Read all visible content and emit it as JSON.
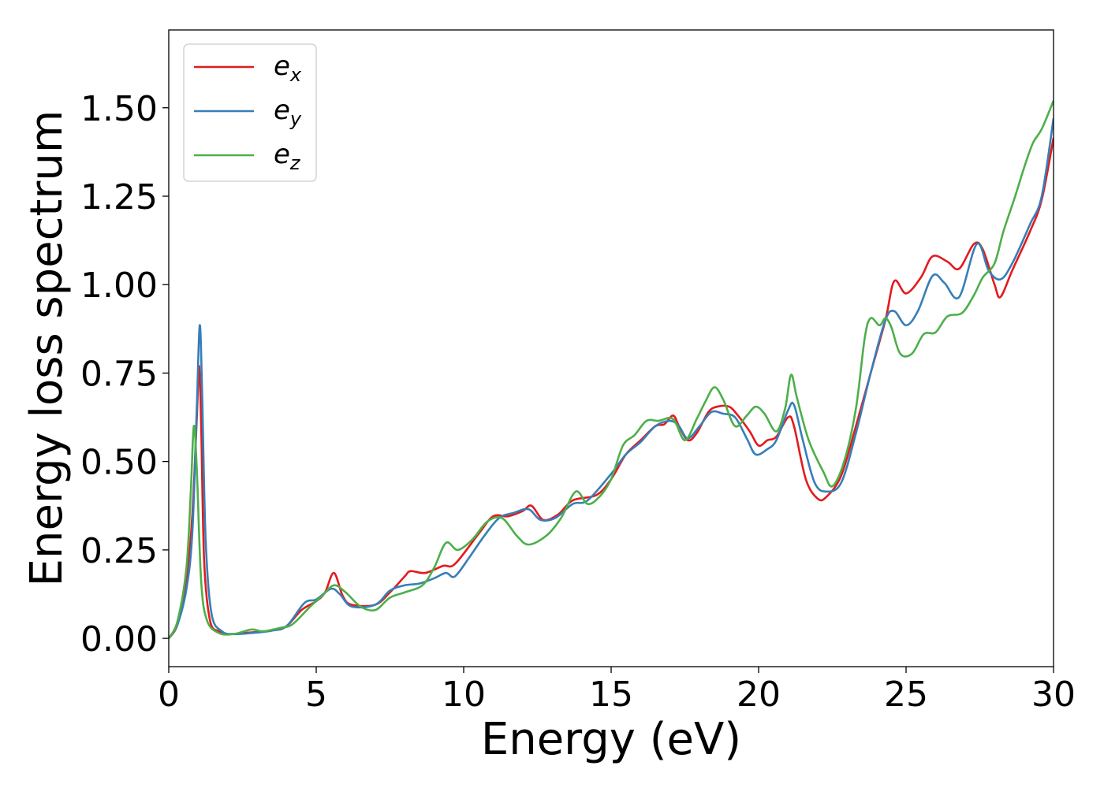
{
  "chart_data": {
    "type": "line",
    "xlabel": "Energy (eV)",
    "ylabel": "Energy loss spectrum",
    "xlim": [
      0,
      30
    ],
    "ylim": [
      -0.08,
      1.72
    ],
    "x_ticks": [
      0,
      5,
      10,
      15,
      20,
      25,
      30
    ],
    "x_tick_labels": [
      "0",
      "5",
      "10",
      "15",
      "20",
      "25",
      "30"
    ],
    "y_ticks": [
      0,
      0.25,
      0.5,
      0.75,
      1.0,
      1.25,
      1.5
    ],
    "y_tick_labels": [
      "0.00",
      "0.25",
      "0.50",
      "0.75",
      "1.00",
      "1.25",
      "1.50"
    ],
    "grid": false,
    "legend_position": "top-left",
    "series": [
      {
        "name": "e_x",
        "legend_base": "e",
        "legend_sub": "x",
        "color": "#e41a1c",
        "points": [
          [
            0,
            0
          ],
          [
            0.3,
            0.04
          ],
          [
            0.6,
            0.16
          ],
          [
            0.8,
            0.35
          ],
          [
            0.95,
            0.62
          ],
          [
            1.03,
            0.77
          ],
          [
            1.1,
            0.6
          ],
          [
            1.2,
            0.22
          ],
          [
            1.4,
            0.05
          ],
          [
            1.7,
            0.02
          ],
          [
            2.0,
            0.012
          ],
          [
            2.5,
            0.015
          ],
          [
            3.0,
            0.018
          ],
          [
            3.5,
            0.022
          ],
          [
            4.0,
            0.035
          ],
          [
            4.5,
            0.08
          ],
          [
            5.0,
            0.105
          ],
          [
            5.3,
            0.13
          ],
          [
            5.6,
            0.185
          ],
          [
            5.9,
            0.12
          ],
          [
            6.2,
            0.095
          ],
          [
            7.0,
            0.095
          ],
          [
            7.5,
            0.13
          ],
          [
            8.0,
            0.175
          ],
          [
            8.2,
            0.19
          ],
          [
            8.7,
            0.185
          ],
          [
            9.3,
            0.205
          ],
          [
            9.7,
            0.21
          ],
          [
            10.5,
            0.295
          ],
          [
            11.0,
            0.345
          ],
          [
            11.5,
            0.345
          ],
          [
            12.0,
            0.36
          ],
          [
            12.3,
            0.375
          ],
          [
            12.7,
            0.335
          ],
          [
            13.2,
            0.35
          ],
          [
            13.7,
            0.39
          ],
          [
            14.5,
            0.405
          ],
          [
            15.0,
            0.45
          ],
          [
            15.5,
            0.52
          ],
          [
            16.0,
            0.56
          ],
          [
            16.5,
            0.6
          ],
          [
            16.8,
            0.605
          ],
          [
            17.1,
            0.63
          ],
          [
            17.3,
            0.6
          ],
          [
            17.6,
            0.56
          ],
          [
            17.9,
            0.58
          ],
          [
            18.3,
            0.64
          ],
          [
            18.6,
            0.655
          ],
          [
            19.0,
            0.655
          ],
          [
            19.3,
            0.63
          ],
          [
            19.7,
            0.585
          ],
          [
            20.0,
            0.545
          ],
          [
            20.3,
            0.56
          ],
          [
            20.6,
            0.57
          ],
          [
            21.0,
            0.625
          ],
          [
            21.2,
            0.6
          ],
          [
            21.6,
            0.45
          ],
          [
            22.0,
            0.395
          ],
          [
            22.3,
            0.4
          ],
          [
            22.8,
            0.46
          ],
          [
            23.3,
            0.6
          ],
          [
            23.8,
            0.75
          ],
          [
            24.3,
            0.9
          ],
          [
            24.6,
            1.01
          ],
          [
            25.0,
            0.975
          ],
          [
            25.5,
            1.02
          ],
          [
            25.9,
            1.08
          ],
          [
            26.4,
            1.065
          ],
          [
            26.8,
            1.045
          ],
          [
            27.3,
            1.115
          ],
          [
            27.6,
            1.1
          ],
          [
            28.0,
            1.0
          ],
          [
            28.2,
            0.965
          ],
          [
            28.6,
            1.04
          ],
          [
            29.2,
            1.15
          ],
          [
            29.6,
            1.24
          ],
          [
            30.0,
            1.415
          ]
        ]
      },
      {
        "name": "e_y",
        "legend_base": "e",
        "legend_sub": "y",
        "color": "#377eb8",
        "points": [
          [
            0,
            0
          ],
          [
            0.3,
            0.04
          ],
          [
            0.6,
            0.14
          ],
          [
            0.8,
            0.3
          ],
          [
            0.95,
            0.65
          ],
          [
            1.05,
            0.885
          ],
          [
            1.13,
            0.7
          ],
          [
            1.25,
            0.28
          ],
          [
            1.45,
            0.07
          ],
          [
            1.8,
            0.02
          ],
          [
            2.2,
            0.012
          ],
          [
            2.8,
            0.015
          ],
          [
            3.5,
            0.022
          ],
          [
            4.0,
            0.035
          ],
          [
            4.6,
            0.1
          ],
          [
            5.0,
            0.11
          ],
          [
            5.5,
            0.14
          ],
          [
            5.8,
            0.125
          ],
          [
            6.2,
            0.09
          ],
          [
            7.0,
            0.095
          ],
          [
            7.5,
            0.135
          ],
          [
            8.0,
            0.15
          ],
          [
            8.5,
            0.155
          ],
          [
            9.0,
            0.17
          ],
          [
            9.4,
            0.185
          ],
          [
            9.7,
            0.175
          ],
          [
            10.2,
            0.23
          ],
          [
            10.7,
            0.29
          ],
          [
            11.2,
            0.34
          ],
          [
            11.7,
            0.355
          ],
          [
            12.2,
            0.365
          ],
          [
            12.6,
            0.335
          ],
          [
            13.1,
            0.34
          ],
          [
            13.7,
            0.38
          ],
          [
            14.2,
            0.39
          ],
          [
            15.0,
            0.465
          ],
          [
            15.5,
            0.52
          ],
          [
            16.0,
            0.555
          ],
          [
            16.5,
            0.6
          ],
          [
            17.0,
            0.615
          ],
          [
            17.3,
            0.6
          ],
          [
            17.6,
            0.565
          ],
          [
            18.0,
            0.6
          ],
          [
            18.4,
            0.64
          ],
          [
            18.8,
            0.635
          ],
          [
            19.2,
            0.625
          ],
          [
            19.6,
            0.565
          ],
          [
            19.9,
            0.52
          ],
          [
            20.3,
            0.535
          ],
          [
            20.6,
            0.56
          ],
          [
            21.0,
            0.645
          ],
          [
            21.2,
            0.66
          ],
          [
            21.5,
            0.56
          ],
          [
            21.9,
            0.44
          ],
          [
            22.3,
            0.415
          ],
          [
            22.8,
            0.44
          ],
          [
            23.3,
            0.58
          ],
          [
            23.8,
            0.75
          ],
          [
            24.3,
            0.9
          ],
          [
            24.6,
            0.925
          ],
          [
            25.0,
            0.885
          ],
          [
            25.4,
            0.925
          ],
          [
            25.9,
            1.025
          ],
          [
            26.3,
            1.005
          ],
          [
            26.8,
            0.965
          ],
          [
            27.4,
            1.115
          ],
          [
            27.8,
            1.04
          ],
          [
            28.2,
            1.015
          ],
          [
            28.6,
            1.06
          ],
          [
            29.2,
            1.17
          ],
          [
            29.6,
            1.25
          ],
          [
            30.0,
            1.47
          ]
        ]
      },
      {
        "name": "e_z",
        "legend_base": "e",
        "legend_sub": "z",
        "color": "#4daf4a",
        "points": [
          [
            0,
            0
          ],
          [
            0.3,
            0.05
          ],
          [
            0.6,
            0.2
          ],
          [
            0.75,
            0.42
          ],
          [
            0.85,
            0.6
          ],
          [
            0.95,
            0.48
          ],
          [
            1.1,
            0.16
          ],
          [
            1.3,
            0.05
          ],
          [
            1.7,
            0.015
          ],
          [
            2.2,
            0.012
          ],
          [
            2.8,
            0.025
          ],
          [
            3.2,
            0.02
          ],
          [
            3.8,
            0.03
          ],
          [
            4.2,
            0.04
          ],
          [
            4.8,
            0.09
          ],
          [
            5.2,
            0.12
          ],
          [
            5.6,
            0.15
          ],
          [
            6.0,
            0.13
          ],
          [
            6.5,
            0.09
          ],
          [
            7.0,
            0.08
          ],
          [
            7.5,
            0.115
          ],
          [
            8.0,
            0.13
          ],
          [
            8.6,
            0.15
          ],
          [
            9.0,
            0.2
          ],
          [
            9.4,
            0.27
          ],
          [
            9.8,
            0.25
          ],
          [
            10.3,
            0.28
          ],
          [
            10.8,
            0.33
          ],
          [
            11.3,
            0.34
          ],
          [
            11.8,
            0.29
          ],
          [
            12.2,
            0.265
          ],
          [
            12.8,
            0.29
          ],
          [
            13.3,
            0.34
          ],
          [
            13.8,
            0.415
          ],
          [
            14.2,
            0.38
          ],
          [
            14.6,
            0.4
          ],
          [
            15.0,
            0.45
          ],
          [
            15.4,
            0.545
          ],
          [
            15.8,
            0.575
          ],
          [
            16.2,
            0.615
          ],
          [
            16.6,
            0.615
          ],
          [
            17.1,
            0.62
          ],
          [
            17.5,
            0.56
          ],
          [
            17.9,
            0.62
          ],
          [
            18.2,
            0.67
          ],
          [
            18.5,
            0.71
          ],
          [
            18.8,
            0.675
          ],
          [
            19.2,
            0.6
          ],
          [
            19.6,
            0.63
          ],
          [
            19.9,
            0.655
          ],
          [
            20.2,
            0.635
          ],
          [
            20.6,
            0.585
          ],
          [
            20.9,
            0.65
          ],
          [
            21.1,
            0.745
          ],
          [
            21.3,
            0.68
          ],
          [
            21.7,
            0.56
          ],
          [
            22.2,
            0.47
          ],
          [
            22.5,
            0.43
          ],
          [
            22.9,
            0.5
          ],
          [
            23.3,
            0.65
          ],
          [
            23.6,
            0.85
          ],
          [
            23.8,
            0.905
          ],
          [
            24.1,
            0.885
          ],
          [
            24.3,
            0.905
          ],
          [
            24.5,
            0.88
          ],
          [
            24.8,
            0.805
          ],
          [
            25.2,
            0.805
          ],
          [
            25.6,
            0.86
          ],
          [
            26.0,
            0.865
          ],
          [
            26.4,
            0.91
          ],
          [
            26.9,
            0.92
          ],
          [
            27.3,
            0.97
          ],
          [
            27.6,
            1.02
          ],
          [
            28.0,
            1.06
          ],
          [
            28.3,
            1.15
          ],
          [
            28.7,
            1.25
          ],
          [
            29.0,
            1.33
          ],
          [
            29.3,
            1.4
          ],
          [
            29.6,
            1.44
          ],
          [
            30.0,
            1.52
          ]
        ]
      }
    ]
  }
}
